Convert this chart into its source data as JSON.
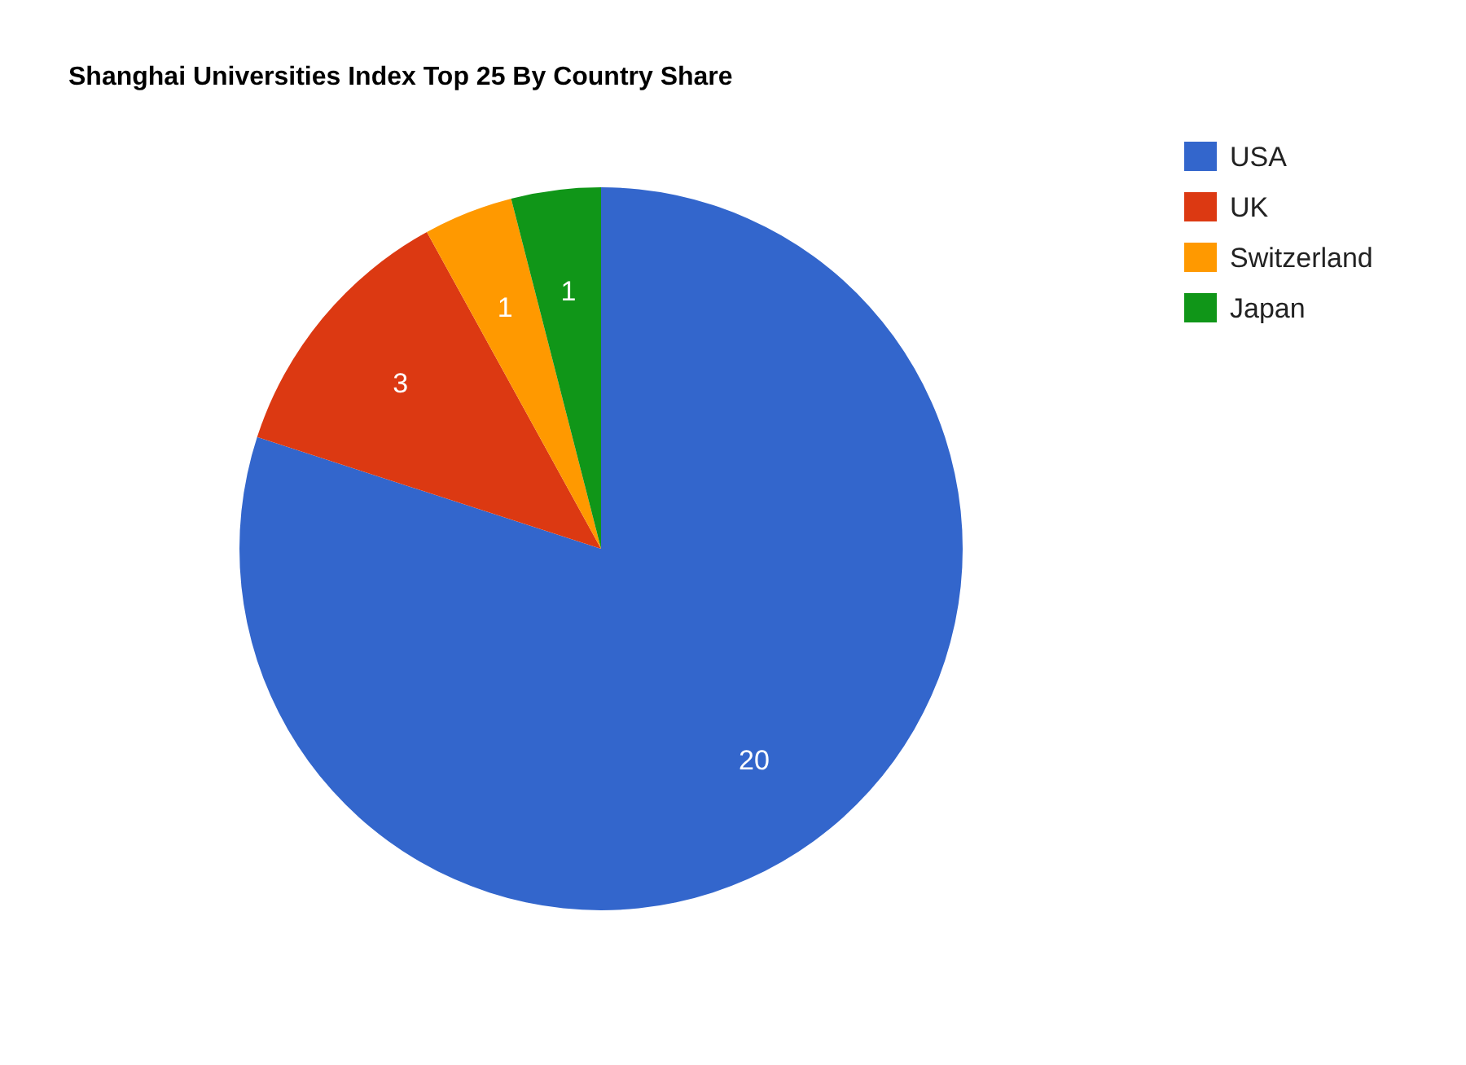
{
  "chart_data": {
    "type": "pie",
    "title": "Shanghai Universities Index Top 25 By Country Share",
    "categories": [
      "USA",
      "UK",
      "Switzerland",
      "Japan"
    ],
    "values": [
      20,
      3,
      1,
      1
    ],
    "colors": [
      "#3366cc",
      "#dc3912",
      "#ff9900",
      "#109618"
    ],
    "data_labels": true,
    "legend": "top right"
  }
}
